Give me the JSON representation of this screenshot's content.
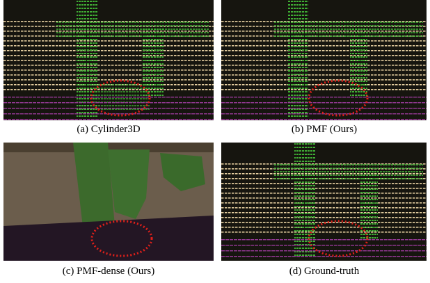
{
  "panels": [
    {
      "caption": "(a) Cylinder3D"
    },
    {
      "caption": "(b) PMF (Ours)"
    },
    {
      "caption": "(c) PMF-dense (Ours)"
    },
    {
      "caption": "(d) Ground-truth"
    }
  ]
}
